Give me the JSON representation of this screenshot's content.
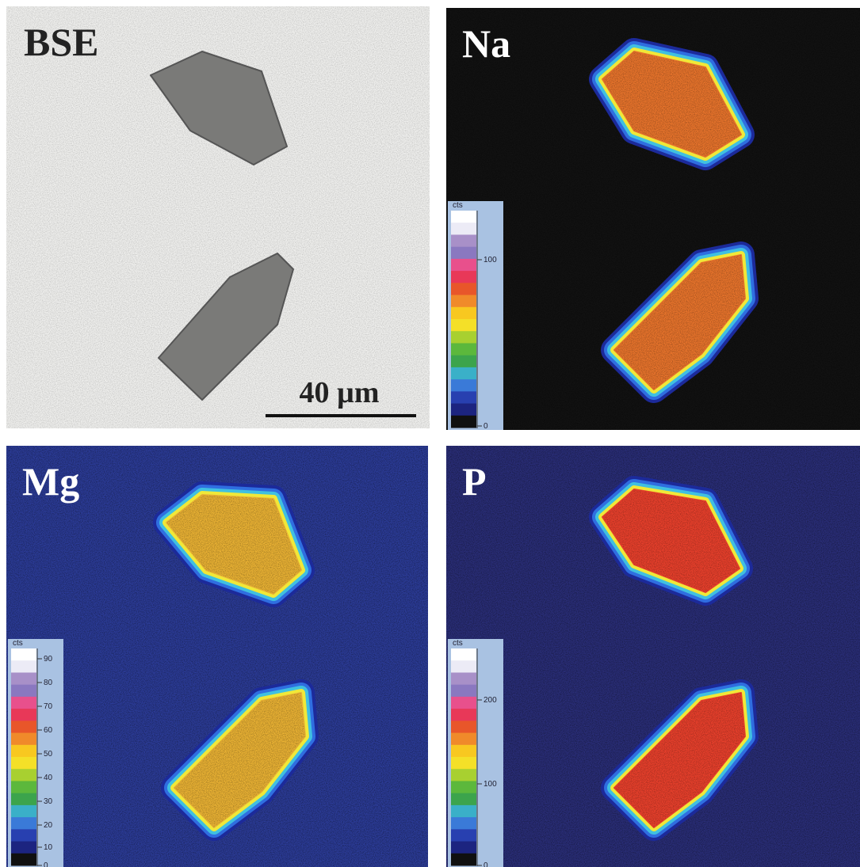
{
  "panels": [
    {
      "label": "BSE",
      "scale_bar": "40 µm"
    },
    {
      "label": "Na",
      "colorbar": {
        "unit": "cts",
        "ticks": [
          "100",
          "0"
        ]
      }
    },
    {
      "label": "Mg",
      "colorbar": {
        "unit": "cts",
        "ticks": [
          "90",
          "80",
          "70",
          "60",
          "50",
          "40",
          "30",
          "20",
          "10",
          "0"
        ]
      }
    },
    {
      "label": "P",
      "colorbar": {
        "unit": "cts",
        "ticks": [
          "200",
          "100",
          "0"
        ]
      }
    }
  ]
}
